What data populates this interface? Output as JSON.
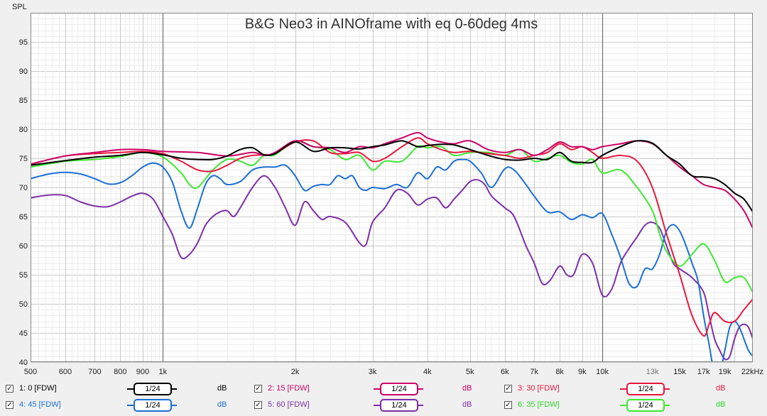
{
  "chart_data": {
    "type": "line",
    "title": "B&G Neo3 in AINOframe with eq 0-60deg 4ms",
    "ylabel": "SPL",
    "xlabel": "",
    "x_scale": "log",
    "xlim": [
      500,
      22000
    ],
    "ylim": [
      40,
      100
    ],
    "yticks": [
      "95",
      "90",
      "85",
      "80",
      "75",
      "70",
      "65",
      "60",
      "55",
      "50",
      "45",
      "40"
    ],
    "xticks_major": [
      "500",
      "600",
      "700",
      "800",
      "900",
      "1k",
      "2k",
      "3k",
      "4k",
      "5k",
      "6k",
      "7k",
      "8k",
      "9k",
      "10k",
      "15k",
      "17k",
      "19k",
      "22kHz"
    ],
    "xticks_minor": [
      "13k"
    ],
    "grid": true,
    "series": [
      {
        "name": "1: 0 [FDW]",
        "color": "#000000",
        "x": [
          500,
          600,
          700,
          800,
          900,
          1000,
          1100,
          1200,
          1300,
          1400,
          1500,
          1600,
          1700,
          1800,
          2000,
          2200,
          2400,
          2600,
          2800,
          3000,
          3200,
          3500,
          3800,
          4000,
          4300,
          4600,
          5000,
          5500,
          6000,
          6500,
          7000,
          7500,
          8000,
          8500,
          9000,
          9500,
          10000,
          11000,
          12000,
          13000,
          14000,
          15000,
          16000,
          17000,
          18000,
          19000,
          20000,
          21000,
          22000
        ],
        "values": [
          73.8,
          74.6,
          75.2,
          75.5,
          76.0,
          75.6,
          75.0,
          74.8,
          74.8,
          75.4,
          76.5,
          76.8,
          75.6,
          75.8,
          77.8,
          76.2,
          76.8,
          76.8,
          76.6,
          77.0,
          77.3,
          78.0,
          77.0,
          77.2,
          77.4,
          77.3,
          76.5,
          75.5,
          74.8,
          74.7,
          75.0,
          74.8,
          76.0,
          74.5,
          74.3,
          74.3,
          75.5,
          77.0,
          78.0,
          77.6,
          75.5,
          74.0,
          72.0,
          71.8,
          71.5,
          70.5,
          69.0,
          68.0,
          65.8
        ]
      },
      {
        "name": "2: 15 [FDW]",
        "color": "#cc0066",
        "x": [
          500,
          600,
          700,
          800,
          900,
          1000,
          1200,
          1400,
          1600,
          1700,
          1800,
          2000,
          2200,
          2400,
          2600,
          2800,
          3000,
          3200,
          3500,
          3800,
          4000,
          4300,
          4600,
          5000,
          5500,
          6000,
          6500,
          7000,
          7500,
          8000,
          8500,
          9000,
          9500,
          10000,
          11000,
          12000,
          13000,
          14000,
          15000,
          16000,
          17000,
          18000,
          19000,
          20000,
          21000,
          22000
        ],
        "values": [
          74.0,
          75.4,
          76.0,
          76.5,
          76.5,
          76.2,
          76.0,
          75.4,
          76.0,
          75.5,
          76.0,
          78.0,
          77.0,
          76.8,
          76.0,
          77.0,
          76.8,
          77.5,
          78.5,
          79.4,
          78.5,
          77.8,
          77.5,
          78.0,
          76.5,
          76.0,
          76.5,
          75.5,
          76.5,
          77.8,
          77.0,
          77.0,
          76.5,
          77.0,
          77.5,
          78.0,
          77.5,
          75.5,
          73.5,
          72.0,
          70.5,
          70.0,
          69.5,
          68.0,
          66.0,
          63.0
        ]
      },
      {
        "name": "3: 30 [FDW]",
        "color": "#e8173c",
        "x": [
          500,
          600,
          700,
          800,
          900,
          1000,
          1100,
          1200,
          1300,
          1400,
          1500,
          1600,
          1700,
          1800,
          2000,
          2200,
          2400,
          2600,
          2800,
          3000,
          3200,
          3500,
          3800,
          4000,
          4300,
          4600,
          5000,
          5500,
          6000,
          6500,
          7000,
          7500,
          8000,
          8500,
          9000,
          9500,
          10000,
          11000,
          12000,
          13000,
          14000,
          15000,
          16000,
          17000,
          17500,
          18000,
          19000,
          20000,
          21000,
          22000
        ],
        "values": [
          74.0,
          75.4,
          75.8,
          76.0,
          76.2,
          75.8,
          74.5,
          73.0,
          72.8,
          73.8,
          75.0,
          75.5,
          75.6,
          75.8,
          77.8,
          78.0,
          76.0,
          75.8,
          76.0,
          74.5,
          75.0,
          77.0,
          78.5,
          77.5,
          76.5,
          76.0,
          76.2,
          75.8,
          75.5,
          75.0,
          75.5,
          76.0,
          77.5,
          76.5,
          77.0,
          76.0,
          75.0,
          75.5,
          74.5,
          70.0,
          62.0,
          55.0,
          48.0,
          44.5,
          46.5,
          48.5,
          47.0,
          47.0,
          49.0,
          50.8
        ]
      },
      {
        "name": "4: 45 [FDW]",
        "color": "#1a6fd4",
        "x": [
          500,
          550,
          600,
          650,
          700,
          750,
          800,
          850,
          900,
          950,
          1000,
          1050,
          1100,
          1150,
          1200,
          1250,
          1300,
          1350,
          1400,
          1500,
          1600,
          1700,
          1800,
          1900,
          2000,
          2100,
          2200,
          2300,
          2400,
          2500,
          2600,
          2700,
          2800,
          2900,
          3000,
          3200,
          3400,
          3600,
          3800,
          4000,
          4200,
          4400,
          4600,
          4800,
          5000,
          5300,
          5600,
          6000,
          6300,
          6700,
          7000,
          7500,
          8000,
          8500,
          9000,
          9500,
          10000,
          10500,
          11000,
          11500,
          12000,
          12500,
          13000,
          13500,
          14000,
          14500,
          15000,
          15500,
          16000,
          16500,
          17000,
          17500,
          18000,
          18500,
          19000,
          19500,
          20000,
          20500,
          21000,
          21500,
          22000
        ],
        "values": [
          71.5,
          72.3,
          72.6,
          72.3,
          71.5,
          70.6,
          70.8,
          72.0,
          73.5,
          74.2,
          73.5,
          71.0,
          66.0,
          63.0,
          66.5,
          70.5,
          72.0,
          71.5,
          70.5,
          71.0,
          73.0,
          73.5,
          73.5,
          73.8,
          72.0,
          69.5,
          70.2,
          70.5,
          70.5,
          72.0,
          71.5,
          72.0,
          70.0,
          69.5,
          70.0,
          69.8,
          70.5,
          70.0,
          72.5,
          71.5,
          73.5,
          73.0,
          74.5,
          74.8,
          74.5,
          72.5,
          70.0,
          73.2,
          73.0,
          70.5,
          68.5,
          65.8,
          65.8,
          64.5,
          65.3,
          64.8,
          65.5,
          62.0,
          58.0,
          53.5,
          53.0,
          56.0,
          56.0,
          58.5,
          62.5,
          63.6,
          62.5,
          60.0,
          57.0,
          54.0,
          48.0,
          43.0,
          38.0,
          38.0,
          42.0,
          46.0,
          47.0,
          46.0,
          44.0,
          42.0,
          41.0
        ]
      },
      {
        "name": "5: 60 [FDW]",
        "color": "#7d2fa8",
        "x": [
          500,
          550,
          600,
          650,
          700,
          750,
          800,
          850,
          900,
          950,
          1000,
          1050,
          1100,
          1150,
          1200,
          1250,
          1300,
          1350,
          1400,
          1450,
          1500,
          1600,
          1700,
          1800,
          1900,
          2000,
          2100,
          2200,
          2300,
          2400,
          2600,
          2800,
          2900,
          3000,
          3200,
          3400,
          3600,
          3800,
          4000,
          4200,
          4400,
          4600,
          4800,
          5000,
          5200,
          5400,
          5600,
          6000,
          6300,
          6700,
          7000,
          7300,
          7600,
          8000,
          8300,
          8600,
          9000,
          9500,
          10000,
          10500,
          11000,
          11500,
          12000,
          12500,
          13000,
          13500,
          14000,
          14500,
          15000,
          16000,
          17000,
          17500,
          18000,
          18500,
          19000,
          19500,
          20000,
          20500,
          21000,
          21500,
          22000
        ],
        "values": [
          68.2,
          68.7,
          68.6,
          67.5,
          66.8,
          66.7,
          67.5,
          68.5,
          69.0,
          68.0,
          65.0,
          62.0,
          58.0,
          58.5,
          60.5,
          63.5,
          65.0,
          65.8,
          66.0,
          65.0,
          66.5,
          70.0,
          72.0,
          70.0,
          66.5,
          63.5,
          67.5,
          66.0,
          64.5,
          65.0,
          64.0,
          60.5,
          60.2,
          64.0,
          66.5,
          69.5,
          69.0,
          67.0,
          68.0,
          68.2,
          66.5,
          68.0,
          69.5,
          71.0,
          71.3,
          70.5,
          68.5,
          66.5,
          65.0,
          60.0,
          57.0,
          53.5,
          54.0,
          56.5,
          55.0,
          55.0,
          58.5,
          57.0,
          51.5,
          52.5,
          57.0,
          59.5,
          61.5,
          63.5,
          64.0,
          63.0,
          60.0,
          57.0,
          56.0,
          54.5,
          52.0,
          48.0,
          44.0,
          42.0,
          40.5,
          41.0,
          44.0,
          46.0,
          46.5,
          46.0,
          44.0
        ]
      },
      {
        "name": "6: 35 [FDW]",
        "color": "#3fe832",
        "x": [
          500,
          600,
          700,
          800,
          900,
          1000,
          1100,
          1150,
          1200,
          1300,
          1400,
          1500,
          1600,
          1700,
          1800,
          2000,
          2200,
          2400,
          2600,
          2800,
          3000,
          3200,
          3500,
          3800,
          4000,
          4300,
          4600,
          5000,
          5500,
          6000,
          6500,
          7000,
          7500,
          8000,
          8500,
          9000,
          9500,
          10000,
          11000,
          12000,
          13000,
          13500,
          14000,
          15000,
          16000,
          17000,
          18000,
          19000,
          20000,
          21000,
          22000
        ],
        "values": [
          73.5,
          74.5,
          74.8,
          75.3,
          76.0,
          75.2,
          72.5,
          70.5,
          70.0,
          73.0,
          74.8,
          74.5,
          73.8,
          75.5,
          75.6,
          78.0,
          77.0,
          76.5,
          74.8,
          75.5,
          73.0,
          74.5,
          74.5,
          77.0,
          76.8,
          77.0,
          75.5,
          76.0,
          76.0,
          75.5,
          76.5,
          74.5,
          75.0,
          75.5,
          74.3,
          74.0,
          74.8,
          72.5,
          73.0,
          70.0,
          66.0,
          62.0,
          59.0,
          56.5,
          58.5,
          60.3,
          57.5,
          53.8,
          54.5,
          54.5,
          52.0
        ]
      }
    ]
  },
  "legend": [
    {
      "label": "1: 0 [FDW]",
      "color": "#000000",
      "text_color": "#000000",
      "smoothing": "1/24",
      "unit": "dB",
      "checked": "✓"
    },
    {
      "label": "2: 15 [FDW]",
      "color": "#cc0066",
      "text_color": "#cc0066",
      "smoothing": "1/24",
      "unit": "dB",
      "checked": "✓"
    },
    {
      "label": "3: 30 [FDW]",
      "color": "#e8173c",
      "text_color": "#e8173c",
      "smoothing": "1/24",
      "unit": "dB",
      "checked": "✓"
    },
    {
      "label": "4: 45 [FDW]",
      "color": "#1a6fd4",
      "text_color": "#1a6fd4",
      "smoothing": "1/24",
      "unit": "dB",
      "checked": "✓"
    },
    {
      "label": "5: 60 [FDW]",
      "color": "#7d2fa8",
      "text_color": "#7d2fa8",
      "smoothing": "1/24",
      "unit": "dB",
      "checked": "✓"
    },
    {
      "label": "6: 35 [FDW]",
      "color": "#3fe832",
      "text_color": "#2bd82a",
      "smoothing": "1/24",
      "unit": "dB",
      "checked": "✓"
    }
  ]
}
